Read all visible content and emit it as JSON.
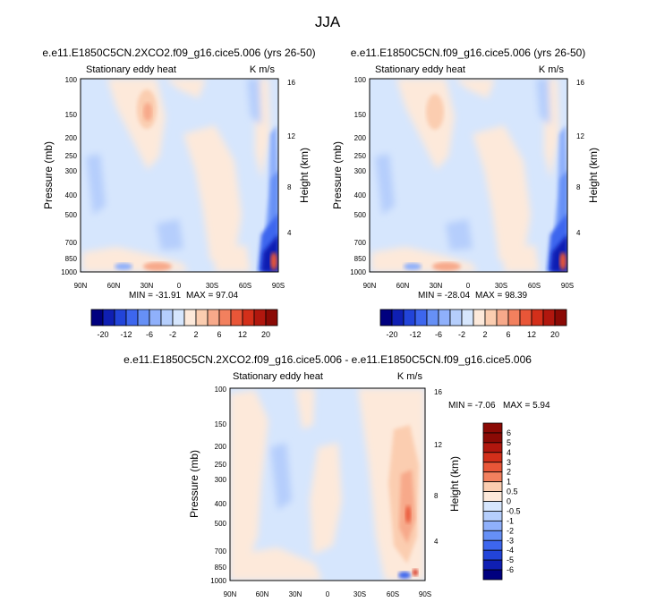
{
  "title": "JJA",
  "chart_data": [
    {
      "type": "contour",
      "title": "e.e11.E1850C5CN.2XCO2.f09_g16.cice5.006 (yrs 26-50)",
      "subtitle_left": "Stationary eddy heat",
      "subtitle_right": "K m/s",
      "ylabel": "Pressure (mb)",
      "ylabel_right": "Height (km)",
      "x_ticks": [
        "90N",
        "60N",
        "30N",
        "0",
        "30S",
        "60S",
        "90S"
      ],
      "y_ticks": [
        "100",
        "150",
        "200",
        "250",
        "300",
        "400",
        "500",
        "700",
        "850",
        "1000"
      ],
      "y_ticks_right": [
        "16",
        "12",
        "8",
        "4"
      ],
      "min_label": "MIN = -31.91",
      "max_label": "MAX = 97.04",
      "min": -31.91,
      "max": 97.04,
      "colorbar_labels": [
        "-20",
        "-12",
        "-6",
        "-2",
        "2",
        "6",
        "12",
        "20"
      ],
      "colorbar_levels": [
        -20,
        -16,
        -12,
        -9,
        -6,
        -4,
        -2,
        -1,
        1,
        2,
        4,
        6,
        9,
        12,
        16,
        20
      ]
    },
    {
      "type": "contour",
      "title": "e.e11.E1850C5CN.f09_g16.cice5.006 (yrs 26-50)",
      "subtitle_left": "Stationary eddy heat",
      "subtitle_right": "K m/s",
      "ylabel": "Pressure (mb)",
      "ylabel_right": "Height (km)",
      "x_ticks": [
        "90N",
        "60N",
        "30N",
        "0",
        "30S",
        "60S",
        "90S"
      ],
      "y_ticks": [
        "100",
        "150",
        "200",
        "250",
        "300",
        "400",
        "500",
        "700",
        "850",
        "1000"
      ],
      "y_ticks_right": [
        "16",
        "12",
        "8",
        "4"
      ],
      "min_label": "MIN = -28.04",
      "max_label": "MAX = 98.39",
      "min": -28.04,
      "max": 98.39,
      "colorbar_labels": [
        "-20",
        "-12",
        "-6",
        "-2",
        "2",
        "6",
        "12",
        "20"
      ],
      "colorbar_levels": [
        -20,
        -16,
        -12,
        -9,
        -6,
        -4,
        -2,
        -1,
        1,
        2,
        4,
        6,
        9,
        12,
        16,
        20
      ]
    },
    {
      "type": "contour",
      "title": "e.e11.E1850C5CN.2XCO2.f09_g16.cice5.006 - e.e11.E1850C5CN.f09_g16.cice5.006",
      "subtitle_left": "Stationary eddy heat",
      "subtitle_right": "K m/s",
      "ylabel": "Pressure (mb)",
      "ylabel_right": "Height (km)",
      "x_ticks": [
        "90N",
        "60N",
        "30N",
        "0",
        "30S",
        "60S",
        "90S"
      ],
      "y_ticks": [
        "100",
        "150",
        "200",
        "250",
        "300",
        "400",
        "500",
        "700",
        "850",
        "1000"
      ],
      "y_ticks_right": [
        "16",
        "12",
        "8",
        "4"
      ],
      "min_label": "MIN = -7.06",
      "max_label": "MAX =  5.94",
      "min": -7.06,
      "max": 5.94,
      "colorbar_labels": [
        "6",
        "5",
        "4",
        "3",
        "2",
        "1",
        "0.5",
        "0",
        "-0.5",
        "-1",
        "-2",
        "-3",
        "-4",
        "-5",
        "-6"
      ],
      "colorbar_levels": [
        6,
        5,
        4,
        3,
        2,
        1,
        0.5,
        0,
        -0.5,
        -1,
        -2,
        -3,
        -4,
        -5,
        -6
      ]
    }
  ],
  "palette": [
    "#00007f",
    "#0f1fb3",
    "#2244d9",
    "#3d66ee",
    "#6690f6",
    "#8fb0fb",
    "#b5cefc",
    "#d6e6fd",
    "#fde9da",
    "#fbcdb0",
    "#f7a98a",
    "#f2805e",
    "#e95638",
    "#d32f1a",
    "#b1170e",
    "#8b0a05"
  ],
  "diff_palette": [
    "#8b0a05",
    "#b1170e",
    "#d32f1a",
    "#e95638",
    "#f2805e",
    "#fbcdb0",
    "#fde9da",
    "#d6e6fd",
    "#b5cefc",
    "#8fb0fb",
    "#6690f6",
    "#3d66ee",
    "#2244d9",
    "#0f1fb3",
    "#00007f"
  ]
}
